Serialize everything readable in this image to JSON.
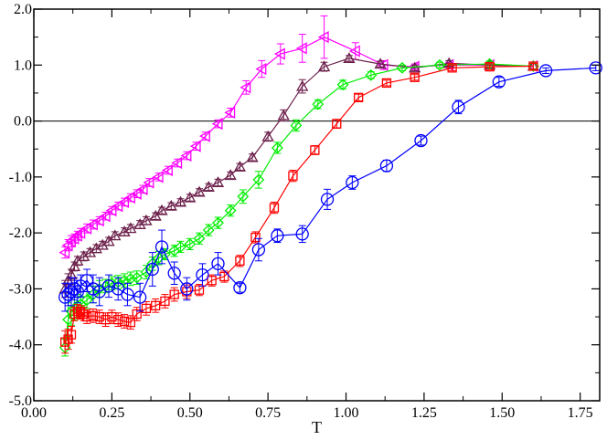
{
  "chart_data": {
    "type": "scatter",
    "title": "",
    "xlabel": "T",
    "ylabel": "",
    "xlim": [
      0.0,
      1.8125
    ],
    "ylim": [
      -5.0,
      2.0
    ],
    "xticks": [
      0.0,
      0.25,
      0.5,
      0.75,
      1.0,
      1.25,
      1.5,
      1.75
    ],
    "xtick_labels": [
      "0.00",
      "0.25",
      "0.50",
      "0.75",
      "1.00",
      "1.25",
      "1.50",
      "1.75"
    ],
    "yticks": [
      -5,
      -4,
      -3,
      -2,
      -1,
      0,
      1,
      2
    ],
    "ytick_labels": [
      "-5.0",
      "-4.0",
      "-3.0",
      "-2.0",
      "-1.0",
      "0.0",
      "1.0",
      "2.0"
    ],
    "reference_line": {
      "y": 0.0,
      "color": "#000000"
    },
    "series": [
      {
        "name": "magenta-left-triangles",
        "color": "#ff00ff",
        "marker": "triangle-left",
        "x": [
          0.1,
          0.11,
          0.12,
          0.13,
          0.14,
          0.15,
          0.17,
          0.19,
          0.21,
          0.23,
          0.25,
          0.27,
          0.29,
          0.31,
          0.33,
          0.35,
          0.37,
          0.4,
          0.43,
          0.46,
          0.49,
          0.52,
          0.55,
          0.59,
          0.63,
          0.68,
          0.73,
          0.79,
          0.86,
          0.93,
          1.03,
          1.12,
          1.22,
          1.33,
          1.46,
          1.6
        ],
        "y": [
          -2.35,
          -2.22,
          -2.15,
          -2.1,
          -2.05,
          -2.0,
          -1.92,
          -1.85,
          -1.78,
          -1.7,
          -1.6,
          -1.52,
          -1.45,
          -1.37,
          -1.3,
          -1.22,
          -1.1,
          -1.0,
          -0.88,
          -0.75,
          -0.62,
          -0.45,
          -0.27,
          -0.05,
          0.15,
          0.6,
          0.93,
          1.2,
          1.3,
          1.5,
          1.25,
          1.0,
          0.97,
          1.0,
          1.0,
          0.98
        ],
        "err": [
          0.1,
          0.1,
          0.1,
          0.08,
          0.08,
          0.08,
          0.08,
          0.08,
          0.07,
          0.07,
          0.07,
          0.07,
          0.07,
          0.07,
          0.07,
          0.07,
          0.07,
          0.07,
          0.07,
          0.07,
          0.07,
          0.07,
          0.07,
          0.07,
          0.08,
          0.12,
          0.15,
          0.18,
          0.25,
          0.38,
          0.15,
          0.08,
          0.05,
          0.05,
          0.05,
          0.05
        ]
      },
      {
        "name": "maroon-triangles",
        "color": "#6b1f4a",
        "marker": "triangle-up",
        "x": [
          0.1,
          0.11,
          0.12,
          0.13,
          0.14,
          0.16,
          0.18,
          0.2,
          0.22,
          0.24,
          0.26,
          0.29,
          0.31,
          0.34,
          0.36,
          0.39,
          0.41,
          0.44,
          0.47,
          0.5,
          0.53,
          0.56,
          0.59,
          0.63,
          0.66,
          0.7,
          0.75,
          0.8,
          0.86,
          0.93,
          1.01,
          1.11,
          1.22,
          1.33,
          1.46,
          1.6
        ],
        "y": [
          -3.0,
          -2.85,
          -2.75,
          -2.6,
          -2.5,
          -2.42,
          -2.35,
          -2.28,
          -2.22,
          -2.15,
          -2.05,
          -1.98,
          -1.92,
          -1.85,
          -1.78,
          -1.7,
          -1.6,
          -1.52,
          -1.45,
          -1.37,
          -1.27,
          -1.18,
          -1.1,
          -0.97,
          -0.82,
          -0.65,
          -0.28,
          0.1,
          0.62,
          0.97,
          1.12,
          1.02,
          0.95,
          1.03,
          1.0,
          0.98
        ],
        "err": [
          0.15,
          0.12,
          0.1,
          0.08,
          0.08,
          0.08,
          0.07,
          0.07,
          0.07,
          0.07,
          0.07,
          0.07,
          0.07,
          0.07,
          0.07,
          0.06,
          0.06,
          0.06,
          0.06,
          0.06,
          0.06,
          0.06,
          0.06,
          0.06,
          0.06,
          0.06,
          0.08,
          0.1,
          0.12,
          0.08,
          0.05,
          0.05,
          0.05,
          0.05,
          0.05,
          0.05
        ]
      },
      {
        "name": "green-diamonds",
        "color": "#00ee00",
        "marker": "diamond",
        "x": [
          0.1,
          0.11,
          0.12,
          0.13,
          0.14,
          0.15,
          0.17,
          0.19,
          0.21,
          0.23,
          0.25,
          0.27,
          0.29,
          0.31,
          0.33,
          0.36,
          0.38,
          0.4,
          0.42,
          0.45,
          0.47,
          0.5,
          0.53,
          0.56,
          0.59,
          0.63,
          0.67,
          0.72,
          0.78,
          0.84,
          0.91,
          0.99,
          1.08,
          1.18,
          1.3,
          1.46,
          1.6
        ],
        "y": [
          -4.05,
          -3.55,
          -3.4,
          -3.35,
          -3.3,
          -3.28,
          -3.2,
          -3.1,
          -3.0,
          -2.95,
          -2.9,
          -2.88,
          -2.85,
          -2.82,
          -2.8,
          -2.7,
          -2.55,
          -2.45,
          -2.38,
          -2.32,
          -2.25,
          -2.2,
          -2.1,
          -1.95,
          -1.82,
          -1.6,
          -1.35,
          -1.05,
          -0.48,
          -0.08,
          0.3,
          0.65,
          0.82,
          0.95,
          1.0,
          1.02,
          0.98
        ],
        "err": [
          0.15,
          0.3,
          0.25,
          0.2,
          0.2,
          0.15,
          0.15,
          0.15,
          0.15,
          0.12,
          0.12,
          0.12,
          0.12,
          0.12,
          0.12,
          0.12,
          0.12,
          0.12,
          0.1,
          0.1,
          0.1,
          0.1,
          0.1,
          0.1,
          0.1,
          0.1,
          0.12,
          0.15,
          0.1,
          0.1,
          0.08,
          0.08,
          0.06,
          0.05,
          0.05,
          0.05,
          0.05
        ]
      },
      {
        "name": "red-squares",
        "color": "#ff0000",
        "marker": "square",
        "x": [
          0.1,
          0.11,
          0.12,
          0.13,
          0.14,
          0.15,
          0.16,
          0.17,
          0.19,
          0.21,
          0.23,
          0.25,
          0.27,
          0.29,
          0.31,
          0.33,
          0.36,
          0.39,
          0.42,
          0.45,
          0.49,
          0.53,
          0.57,
          0.61,
          0.66,
          0.71,
          0.77,
          0.83,
          0.9,
          0.97,
          1.04,
          1.13,
          1.22,
          1.34,
          1.46,
          1.6
        ],
        "y": [
          -3.95,
          -3.9,
          -3.82,
          -3.45,
          -3.4,
          -3.42,
          -3.45,
          -3.5,
          -3.48,
          -3.5,
          -3.55,
          -3.5,
          -3.55,
          -3.58,
          -3.6,
          -3.45,
          -3.35,
          -3.3,
          -3.22,
          -3.1,
          -3.05,
          -3.02,
          -2.85,
          -2.78,
          -2.5,
          -2.08,
          -1.55,
          -0.98,
          -0.52,
          -0.05,
          0.42,
          0.68,
          0.78,
          0.95,
          0.97,
          0.98
        ],
        "err": [
          0.2,
          0.18,
          0.15,
          0.12,
          0.12,
          0.12,
          0.12,
          0.12,
          0.12,
          0.12,
          0.12,
          0.12,
          0.12,
          0.12,
          0.12,
          0.12,
          0.12,
          0.12,
          0.12,
          0.12,
          0.12,
          0.1,
          0.1,
          0.1,
          0.1,
          0.1,
          0.1,
          0.1,
          0.08,
          0.08,
          0.06,
          0.05,
          0.05,
          0.05,
          0.05,
          0.05
        ]
      },
      {
        "name": "blue-circles",
        "color": "#0000ff",
        "marker": "circle",
        "x": [
          0.1,
          0.11,
          0.12,
          0.13,
          0.14,
          0.15,
          0.17,
          0.19,
          0.21,
          0.24,
          0.27,
          0.3,
          0.34,
          0.38,
          0.41,
          0.45,
          0.49,
          0.54,
          0.59,
          0.66,
          0.72,
          0.78,
          0.86,
          0.94,
          1.02,
          1.13,
          1.24,
          1.36,
          1.49,
          1.64,
          1.8
        ],
        "y": [
          -3.15,
          -3.1,
          -3.05,
          -3.0,
          -3.05,
          -2.95,
          -2.85,
          -3.0,
          -3.05,
          -2.95,
          -3.0,
          -3.1,
          -3.15,
          -2.65,
          -2.25,
          -2.72,
          -3.0,
          -2.75,
          -2.55,
          -2.98,
          -2.3,
          -2.05,
          -2.02,
          -1.4,
          -1.1,
          -0.8,
          -0.35,
          0.25,
          0.7,
          0.9,
          0.95
        ],
        "err": [
          0.25,
          0.2,
          0.25,
          0.2,
          0.2,
          0.2,
          0.2,
          0.25,
          0.25,
          0.2,
          0.2,
          0.2,
          0.25,
          0.3,
          0.3,
          0.2,
          0.2,
          0.2,
          0.2,
          0.08,
          0.2,
          0.12,
          0.15,
          0.18,
          0.12,
          0.1,
          0.08,
          0.12,
          0.08,
          0.05,
          0.05
        ]
      }
    ]
  }
}
